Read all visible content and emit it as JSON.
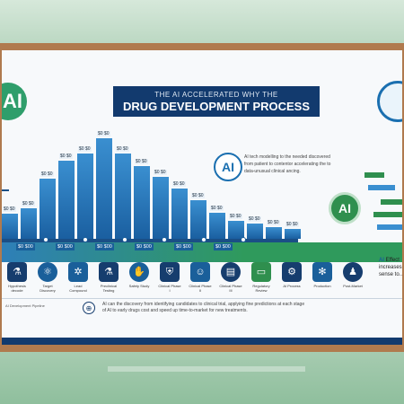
{
  "title": {
    "line1": "THE AI ACCELERATED WHY THE",
    "line2": "DRUG DEVELOPMENT PROCESS"
  },
  "badges": {
    "ai_left": "AI",
    "ai_mid": "AI",
    "ai_green": "AI"
  },
  "mid_caption": "AI tech modelling to the needed discovered from patient to contentor accelerating the to data-unusual clinical ancing.",
  "bar_labels": [
    "$0 $0",
    "$0 $0",
    "$0 $0",
    "$0 $0",
    "$0 $0",
    "$0 $0",
    "$0 $0",
    "$0 $0",
    "$0 $0",
    "$0 $0",
    "$0 $0",
    "$0 $0",
    "$0 $0",
    "$0 $0",
    "$0 $0",
    "$0 $0"
  ],
  "bar_values": [
    0.25,
    0.3,
    0.6,
    0.78,
    0.85,
    1.0,
    0.85,
    0.72,
    0.62,
    0.5,
    0.38,
    0.26,
    0.18,
    0.15,
    0.12,
    0.1
  ],
  "steps": [
    "$0 $00",
    "$0 $00",
    "$0 $00",
    "$0 $00",
    "$0 $00",
    "$0 $00"
  ],
  "icons": [
    {
      "name": "beaker-icon",
      "glyph": "⚗",
      "cap": "Hypothesis decode"
    },
    {
      "name": "microscope-icon",
      "glyph": "⚛",
      "cap": "Target Discovery"
    },
    {
      "name": "molecule-icon",
      "glyph": "✲",
      "cap": "Lead Compound"
    },
    {
      "name": "flask-icon",
      "glyph": "⚗",
      "cap": "Preclinical Testing"
    },
    {
      "name": "hand-icon",
      "glyph": "✋",
      "cap": "Safety Study"
    },
    {
      "name": "shield-icon",
      "glyph": "⛨",
      "cap": "Clinical Phase I"
    },
    {
      "name": "patient-icon",
      "glyph": "☺",
      "cap": "Clinical Phase II"
    },
    {
      "name": "chart-icon",
      "glyph": "▤",
      "cap": "Clinical Phase III"
    },
    {
      "name": "monitor-icon",
      "glyph": "▭",
      "cap": "Regulatory Review"
    },
    {
      "name": "gear-icon",
      "glyph": "⚙",
      "cap": "AI Process"
    },
    {
      "name": "dna-icon",
      "glyph": "✻",
      "cap": "Production"
    },
    {
      "name": "person-icon",
      "glyph": "♟",
      "cap": "Post-Market"
    }
  ],
  "right_text": {
    "ai": "AI",
    "rest": "Effect increases sense to..."
  },
  "footer_left": "AI Development Pipeline",
  "footer_text": "AI can the discovery from identifying candidates to clinical trial, applying fine predictions at each stage of AI to early drugs cost and speed up time-to-market for new treatments."
}
